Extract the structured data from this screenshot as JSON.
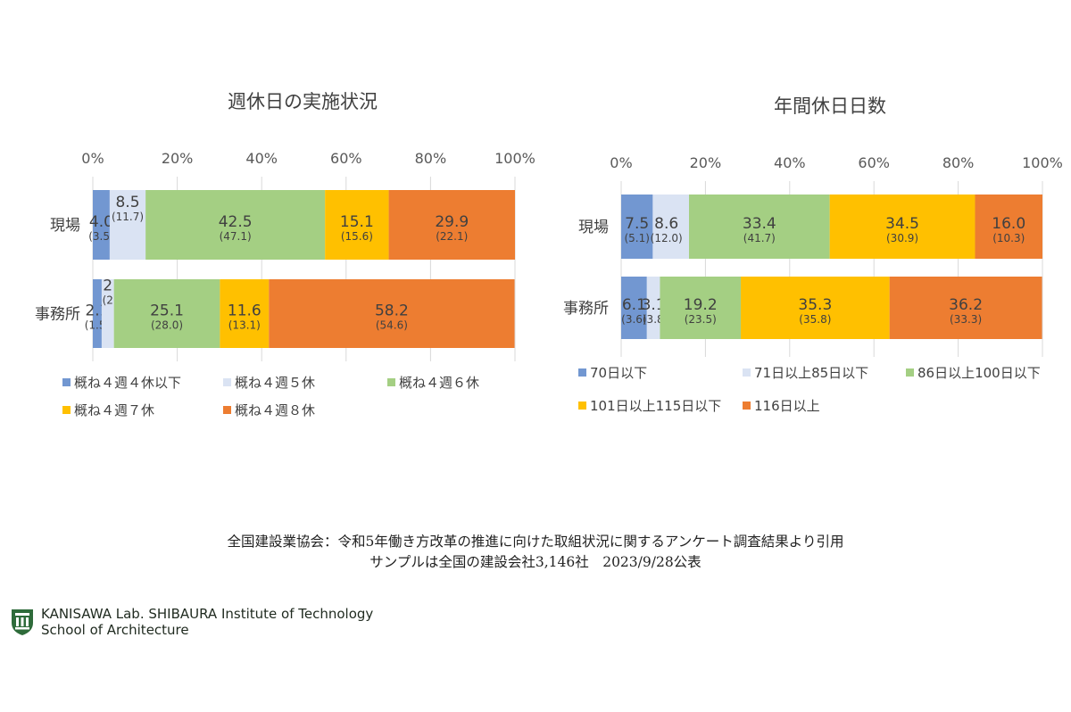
{
  "chart_data": [
    {
      "type": "bar",
      "orientation": "horizontal-stacked-100",
      "title": "週休日の実施状況",
      "categories": [
        "現場",
        "事務所"
      ],
      "xlim": [
        0,
        100
      ],
      "x_ticks": [
        "0%",
        "20%",
        "40%",
        "60%",
        "80%",
        "100%"
      ],
      "grid": true,
      "legend_position": "bottom",
      "series": [
        {
          "name": "概ね４週４休以下",
          "color": "#7297d1",
          "values": [
            4.0,
            2.1
          ],
          "sub_values": [
            "(3.5)",
            "(1.5)"
          ]
        },
        {
          "name": "概ね４週５休",
          "color": "#dae3f3",
          "values": [
            8.5,
            2.9
          ],
          "sub_values": [
            "(11.7)",
            "(2.8)"
          ]
        },
        {
          "name": "概ね４週６休",
          "color": "#a4cf83",
          "values": [
            42.5,
            25.1
          ],
          "sub_values": [
            "(47.1)",
            "(28.0)"
          ]
        },
        {
          "name": "概ね４週７休",
          "color": "#ffc000",
          "values": [
            15.1,
            11.6
          ],
          "sub_values": [
            "(15.6)",
            "(13.1)"
          ]
        },
        {
          "name": "概ね４週８休",
          "color": "#ed7d31",
          "values": [
            29.9,
            58.2
          ],
          "sub_values": [
            "(22.1)",
            "(54.6)"
          ]
        }
      ]
    },
    {
      "type": "bar",
      "orientation": "horizontal-stacked-100",
      "title": "年間休日日数",
      "categories": [
        "現場",
        "事務所"
      ],
      "xlim": [
        0,
        100
      ],
      "x_ticks": [
        "0%",
        "20%",
        "40%",
        "60%",
        "80%",
        "100%"
      ],
      "grid": true,
      "legend_position": "bottom",
      "series": [
        {
          "name": "70日以下",
          "color": "#7297d1",
          "values": [
            7.5,
            6.1
          ],
          "sub_values": [
            "(5.1)",
            "(3.6)"
          ]
        },
        {
          "name": "71日以上85日以下",
          "color": "#dae3f3",
          "values": [
            8.6,
            3.1
          ],
          "sub_values": [
            "(12.0)",
            "(3.8)"
          ]
        },
        {
          "name": "86日以上100日以下",
          "color": "#a4cf83",
          "values": [
            33.4,
            19.2
          ],
          "sub_values": [
            "(41.7)",
            "(23.5)"
          ]
        },
        {
          "name": "101日以上115日以下",
          "color": "#ffc000",
          "values": [
            34.5,
            35.3
          ],
          "sub_values": [
            "(30.9)",
            "(35.8)"
          ]
        },
        {
          "name": "116日以上",
          "color": "#ed7d31",
          "values": [
            16.0,
            36.2
          ],
          "sub_values": [
            "(10.3)",
            "(33.3)"
          ]
        }
      ]
    }
  ],
  "source": {
    "line1": "全国建設業協会：令和5年働き方改革の推進に向けた取組状況に関するアンケート調査結果より引用",
    "line2": "サンプルは全国の建設会社3,146社　2023/9/28公表"
  },
  "lab": {
    "name": "KANISAWA Lab. SHIBAURA Institute of  Technology",
    "school": "School of Architecture",
    "logo_color": "#2e6b3a",
    "logo_icon": "university-crest-icon"
  }
}
